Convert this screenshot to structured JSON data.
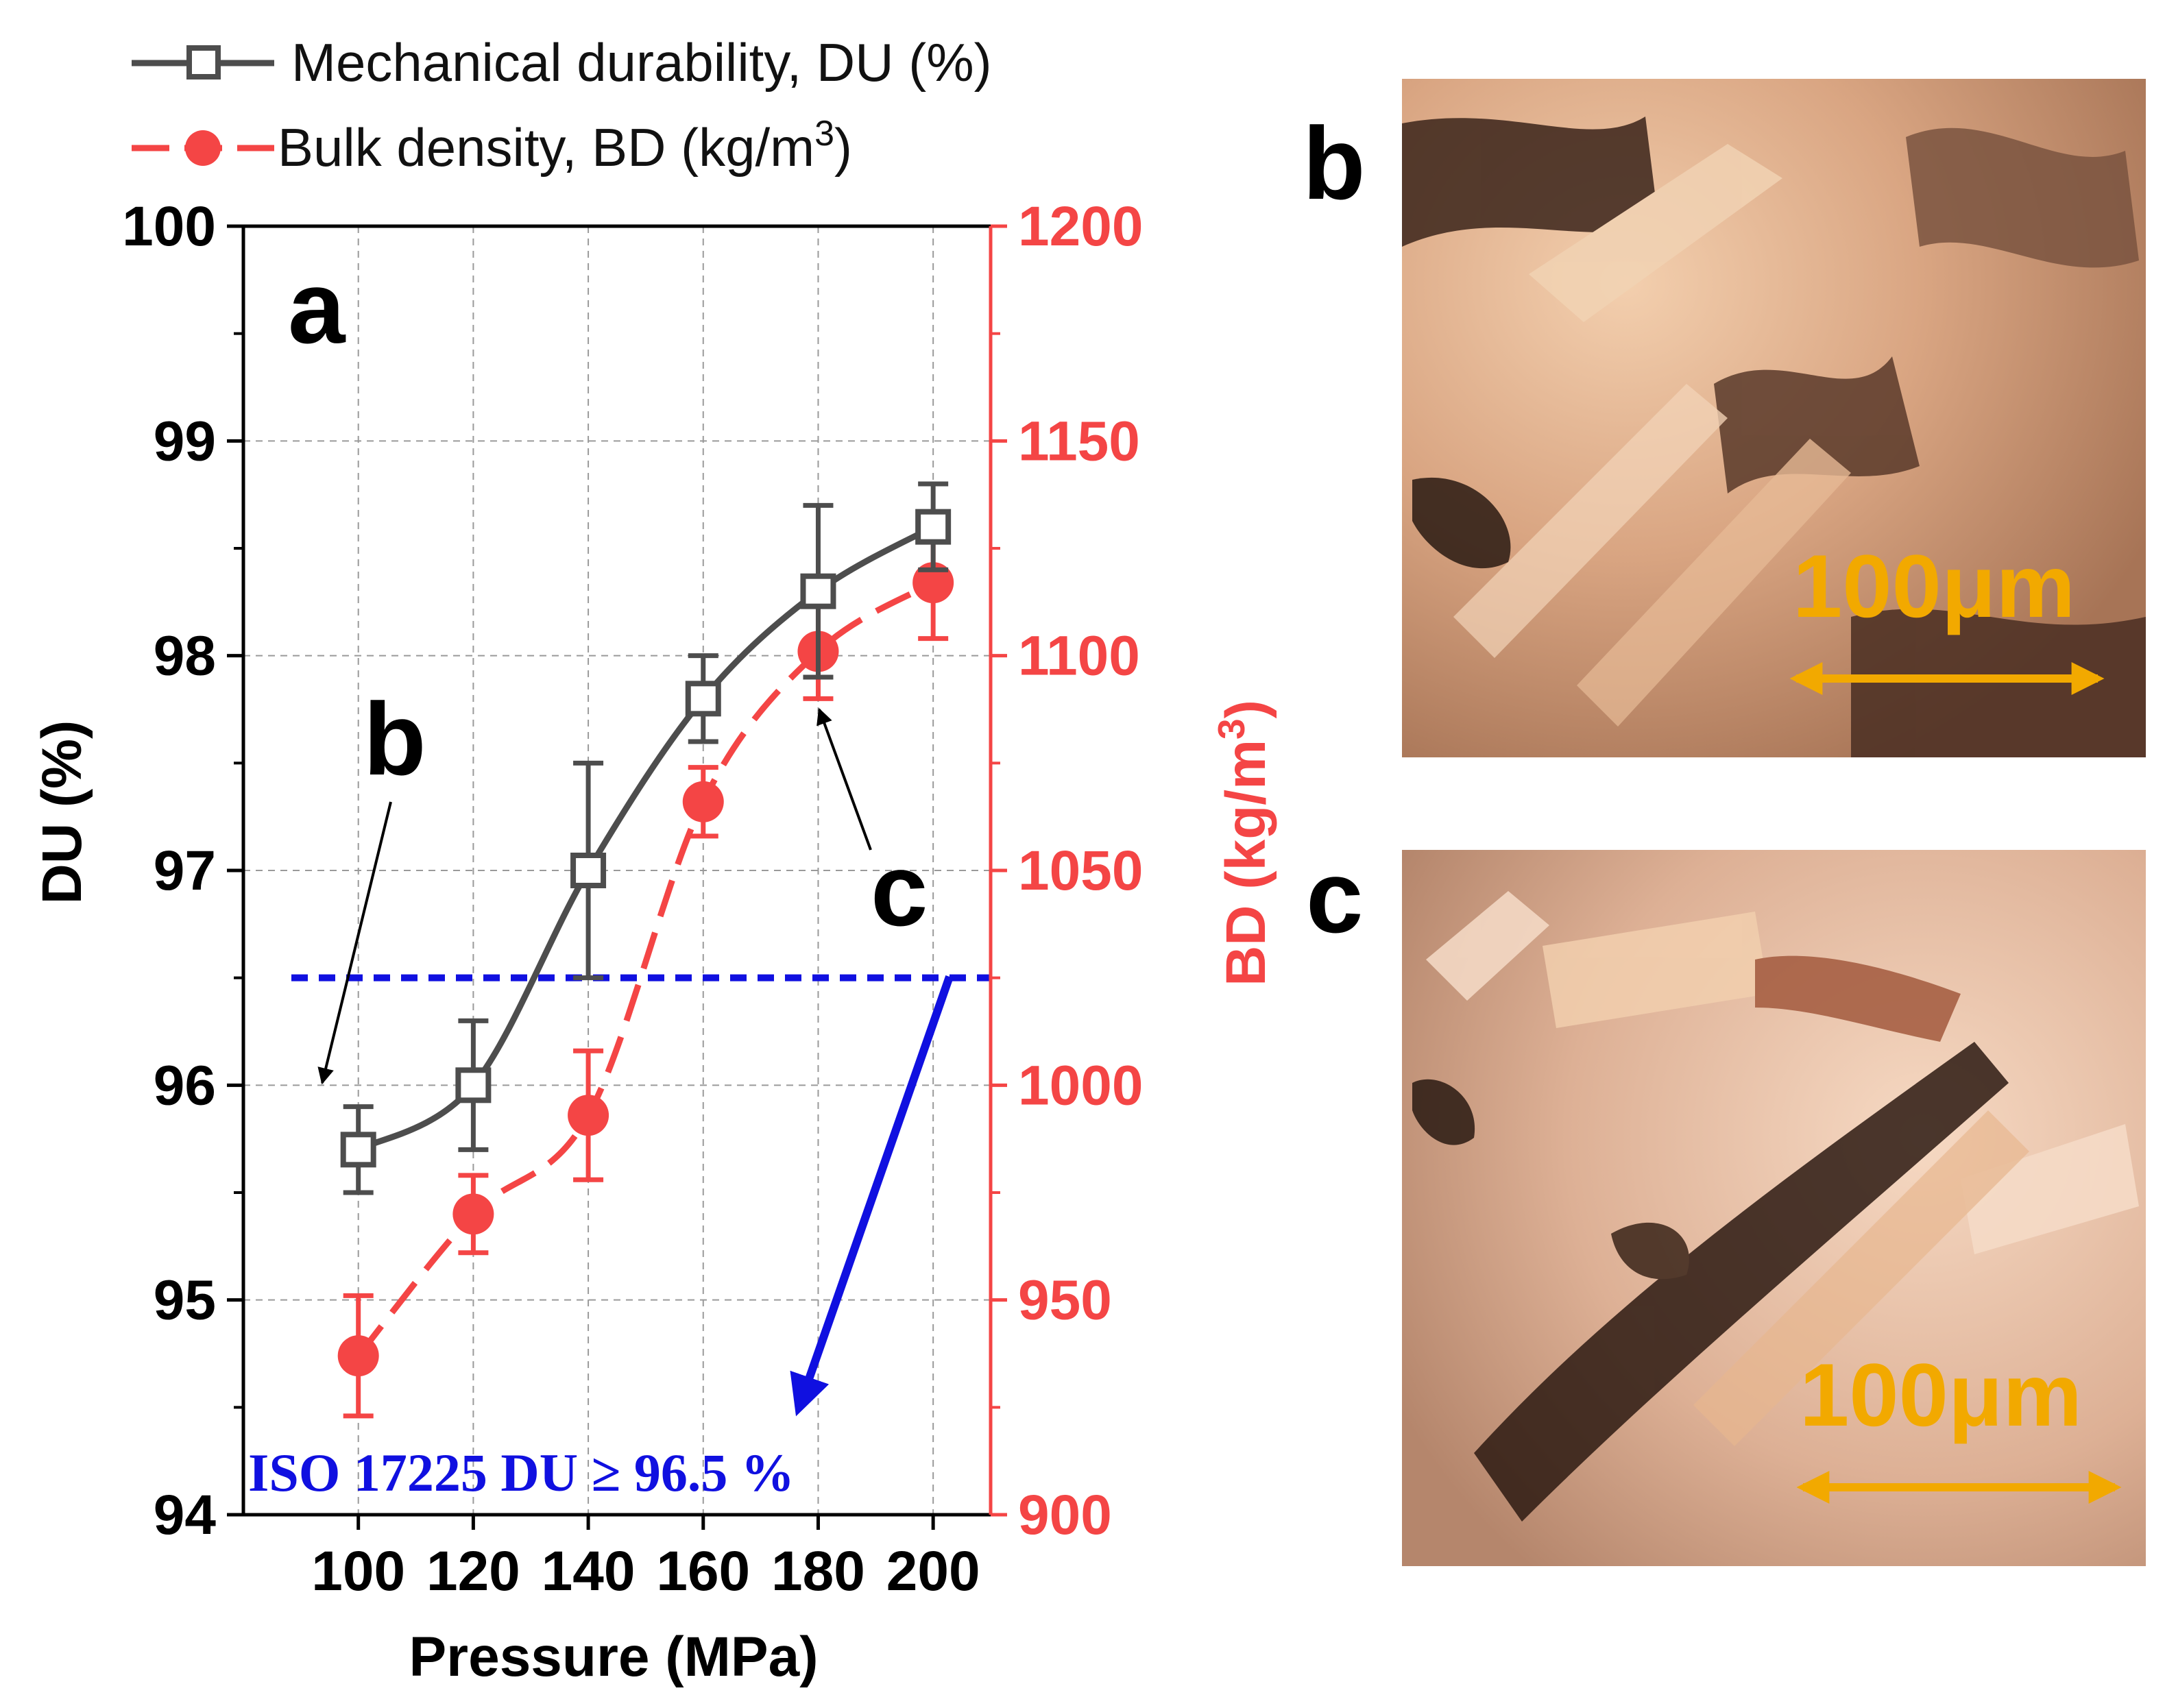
{
  "legend": {
    "du_label": "Mechanical durability, DU (%)",
    "bd_label_prefix": "Bulk density, BD (kg/m",
    "bd_label_sup": "3",
    "bd_label_suffix": ")"
  },
  "panels": {
    "a": "a",
    "b": "b",
    "c": "c",
    "annot_b": "b",
    "annot_c": "c"
  },
  "micrographs": [
    {
      "panel": "b",
      "scale_label": "100μm"
    },
    {
      "panel": "c",
      "scale_label": "100μm"
    }
  ],
  "iso": {
    "label": "ISO 17225 DU ≥ 96.5 %",
    "value": 96.5
  },
  "colors": {
    "du": "#4d4d4d",
    "bd": "#f44545",
    "iso": "#1010e0",
    "scale": "#f2a900",
    "grid": "#9a9a9a"
  },
  "chart_data": {
    "type": "line",
    "title": "",
    "xlabel": "Pressure (MPa)",
    "ylabel": "DU (%)",
    "y2label_prefix": "BD (kg/m",
    "y2label_sup": "3",
    "y2label_suffix": ")",
    "x": [
      100,
      120,
      140,
      160,
      180,
      200
    ],
    "xlim": [
      80,
      210
    ],
    "ylim": [
      94,
      100
    ],
    "y2lim": [
      900,
      1200
    ],
    "xticks": [
      100,
      120,
      140,
      160,
      180,
      200
    ],
    "yticks": [
      94,
      95,
      96,
      97,
      98,
      99,
      100
    ],
    "y2ticks": [
      900,
      950,
      1000,
      1050,
      1100,
      1150,
      1200
    ],
    "grid": true,
    "series": [
      {
        "name": "Mechanical durability, DU (%)",
        "axis": "left",
        "marker": "open-square",
        "style": "solid",
        "values": [
          95.7,
          96.0,
          97.0,
          97.8,
          98.3,
          98.6
        ],
        "errors": [
          0.2,
          0.3,
          0.5,
          0.2,
          0.4,
          0.2
        ]
      },
      {
        "name": "Bulk density, BD (kg/m3)",
        "axis": "right",
        "marker": "filled-circle",
        "style": "dashed",
        "values": [
          937,
          970,
          993,
          1066,
          1101,
          1117
        ],
        "errors": [
          14,
          9,
          15,
          8,
          11,
          13
        ]
      }
    ]
  }
}
